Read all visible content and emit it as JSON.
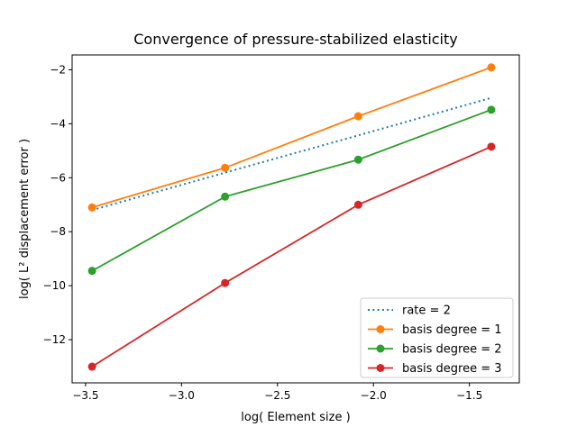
{
  "chart_data": {
    "type": "line",
    "title": "Convergence of pressure-stabilized elasticity",
    "xlabel": "log( Element size )",
    "ylabel": "log( L² displacement error )",
    "xlim": [
      -3.57,
      -1.24
    ],
    "ylim": [
      -13.6,
      -1.45
    ],
    "xticks": [
      -3.5,
      -3.0,
      -2.5,
      -2.0,
      -1.5
    ],
    "xtick_labels": [
      "−3.5",
      "−3.0",
      "−2.5",
      "−2.0",
      "−1.5"
    ],
    "yticks": [
      -12,
      -10,
      -8,
      -6,
      -4,
      -2
    ],
    "ytick_labels": [
      "−12",
      "−10",
      "−8",
      "−6",
      "−4",
      "−2"
    ],
    "grid": false,
    "legend_position": "lower-right",
    "series": [
      {
        "name": "rate = 2",
        "style": "dotted",
        "marker": "none",
        "color": "#1f77b4",
        "x": [
          -3.466,
          -2.773,
          -2.079,
          -1.386
        ],
        "y": [
          -7.2,
          -5.81,
          -4.43,
          -3.04
        ]
      },
      {
        "name": "basis degree = 1",
        "style": "solid",
        "marker": "circle",
        "color": "#ff7f0e",
        "x": [
          -3.466,
          -2.773,
          -2.079,
          -1.386
        ],
        "y": [
          -7.1,
          -5.63,
          -3.72,
          -1.91
        ]
      },
      {
        "name": "basis degree = 2",
        "style": "solid",
        "marker": "circle",
        "color": "#2ca02c",
        "x": [
          -3.466,
          -2.773,
          -2.079,
          -1.386
        ],
        "y": [
          -9.45,
          -6.7,
          -5.33,
          -3.48
        ]
      },
      {
        "name": "basis degree = 3",
        "style": "solid",
        "marker": "circle",
        "color": "#d62728",
        "x": [
          -3.466,
          -2.773,
          -2.079,
          -1.386
        ],
        "y": [
          -13.0,
          -9.9,
          -7.0,
          -4.85
        ]
      }
    ]
  }
}
